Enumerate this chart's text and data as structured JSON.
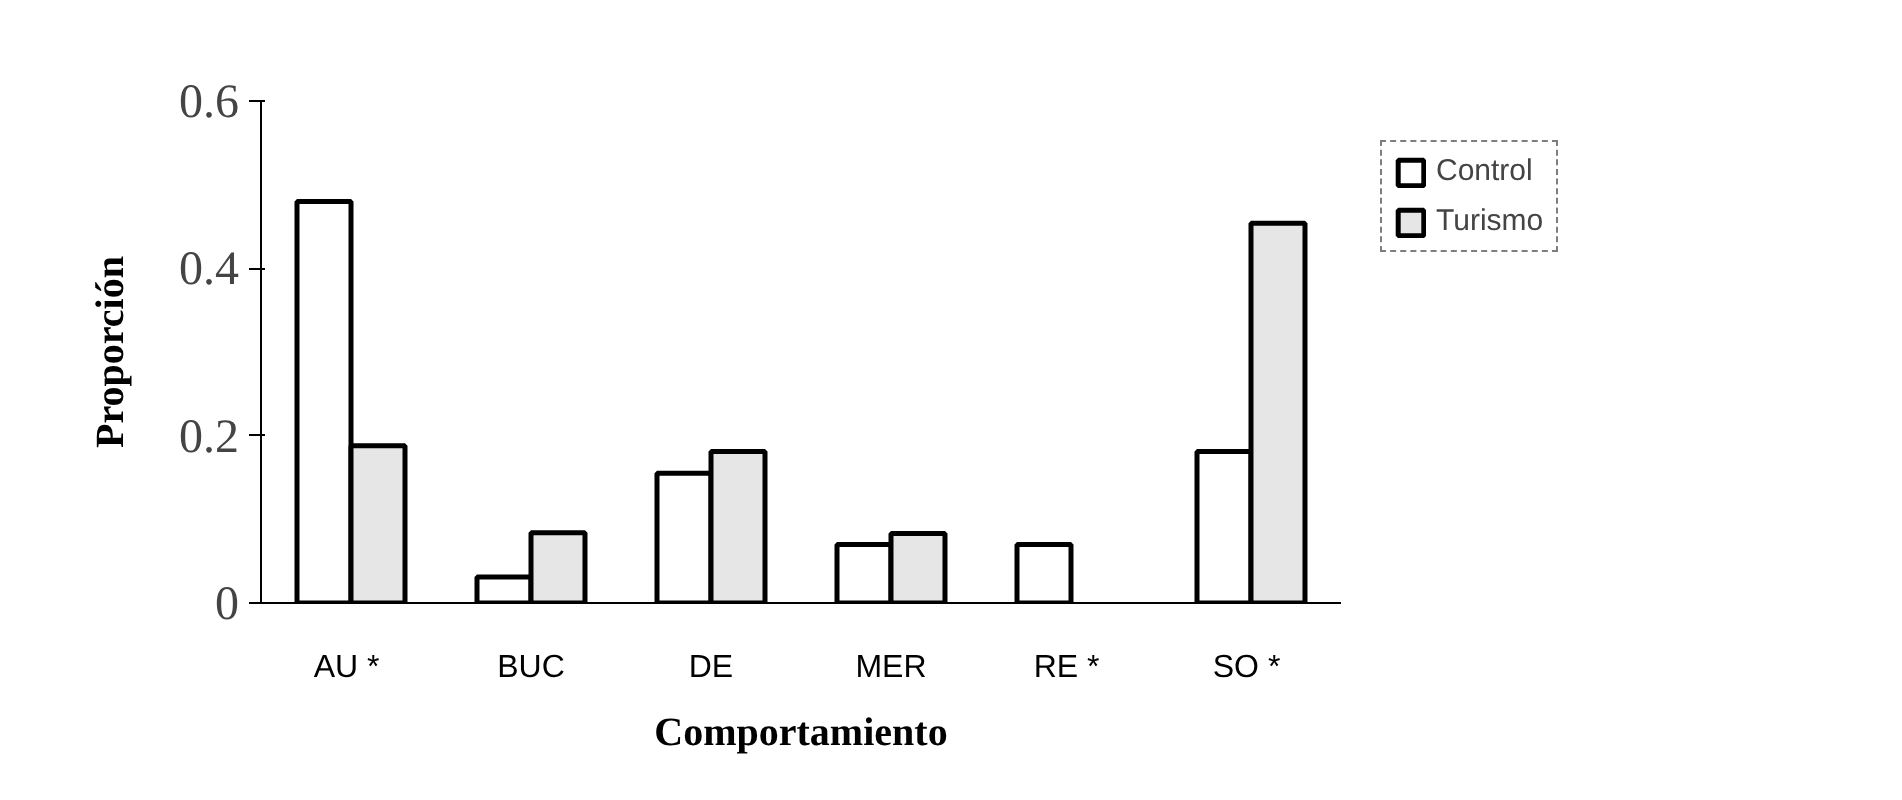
{
  "chart_data": {
    "type": "bar",
    "xlabel": "Comportamiento",
    "ylabel": "Proporción",
    "categories": [
      "AU  *",
      "BUC",
      "DE",
      "MER",
      "RE  *",
      "SO  *"
    ],
    "series": [
      {
        "name": "Control",
        "color": "#ffffff",
        "values": [
          0.48,
          0.031,
          0.155,
          0.07,
          0.07,
          0.181
        ]
      },
      {
        "name": "Turismo",
        "color": "#e6e6e6",
        "values": [
          0.188,
          0.084,
          0.181,
          0.083,
          null,
          0.454
        ]
      }
    ],
    "ylim": [
      0,
      0.6
    ],
    "yticks": [
      0,
      0.2,
      0.4,
      0.6
    ],
    "grid": false,
    "legend": "top right"
  }
}
